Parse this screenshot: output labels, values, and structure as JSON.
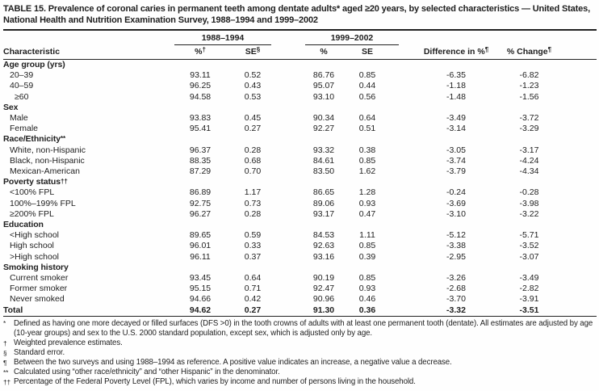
{
  "title": "TABLE 15. Prevalence of coronal caries in permanent teeth among dentate adults* aged ≥20 years, by selected characteristics — United States, National Health and Nutrition Examination Survey, 1988–1994 and 1999–2002",
  "table": {
    "group_headers": [
      {
        "label": "1988–1994"
      },
      {
        "label": "1999–2002"
      }
    ],
    "columns": [
      {
        "label": "Characteristic",
        "sup": ""
      },
      {
        "label": "%",
        "sup": "†"
      },
      {
        "label": "SE",
        "sup": "§"
      },
      {
        "label": "%",
        "sup": ""
      },
      {
        "label": "SE",
        "sup": ""
      },
      {
        "label": "Difference in %",
        "sup": "¶"
      },
      {
        "label": "% Change",
        "sup": "¶"
      }
    ],
    "rows": [
      {
        "type": "section",
        "label": "Age group (yrs)",
        "sup": ""
      },
      {
        "type": "item",
        "label": "20–39",
        "indent": 1,
        "values": [
          "93.11",
          "0.52",
          "86.76",
          "0.85",
          "-6.35",
          "-6.82"
        ]
      },
      {
        "type": "item",
        "label": "40–59",
        "indent": 1,
        "values": [
          "96.25",
          "0.43",
          "95.07",
          "0.44",
          "-1.18",
          "-1.23"
        ]
      },
      {
        "type": "item",
        "label": "≥60",
        "indent": 2,
        "values": [
          "94.58",
          "0.53",
          "93.10",
          "0.56",
          "-1.48",
          "-1.56"
        ]
      },
      {
        "type": "section",
        "label": "Sex",
        "sup": ""
      },
      {
        "type": "item",
        "label": "Male",
        "indent": 1,
        "values": [
          "93.83",
          "0.45",
          "90.34",
          "0.64",
          "-3.49",
          "-3.72"
        ]
      },
      {
        "type": "item",
        "label": "Female",
        "indent": 1,
        "values": [
          "95.41",
          "0.27",
          "92.27",
          "0.51",
          "-3.14",
          "-3.29"
        ]
      },
      {
        "type": "section",
        "label": "Race/Ethnicity",
        "sup": "**"
      },
      {
        "type": "item",
        "label": "White, non-Hispanic",
        "indent": 1,
        "values": [
          "96.37",
          "0.28",
          "93.32",
          "0.38",
          "-3.05",
          "-3.17"
        ]
      },
      {
        "type": "item",
        "label": "Black, non-Hispanic",
        "indent": 1,
        "values": [
          "88.35",
          "0.68",
          "84.61",
          "0.85",
          "-3.74",
          "-4.24"
        ]
      },
      {
        "type": "item",
        "label": "Mexican-American",
        "indent": 1,
        "values": [
          "87.29",
          "0.70",
          "83.50",
          "1.62",
          "-3.79",
          "-4.34"
        ]
      },
      {
        "type": "section",
        "label": "Poverty status",
        "sup": "††"
      },
      {
        "type": "item",
        "label": "<100% FPL",
        "indent": 1,
        "values": [
          "86.89",
          "1.17",
          "86.65",
          "1.28",
          "-0.24",
          "-0.28"
        ]
      },
      {
        "type": "item",
        "label": "100%–199% FPL",
        "indent": 1,
        "values": [
          "92.75",
          "0.73",
          "89.06",
          "0.93",
          "-3.69",
          "-3.98"
        ]
      },
      {
        "type": "item",
        "label": "≥200% FPL",
        "indent": 1,
        "values": [
          "96.27",
          "0.28",
          "93.17",
          "0.47",
          "-3.10",
          "-3.22"
        ]
      },
      {
        "type": "section",
        "label": "Education",
        "sup": ""
      },
      {
        "type": "item",
        "label": "<High school",
        "indent": 1,
        "values": [
          "89.65",
          "0.59",
          "84.53",
          "1.11",
          "-5.12",
          "-5.71"
        ]
      },
      {
        "type": "item",
        "label": "High school",
        "indent": 1,
        "values": [
          "96.01",
          "0.33",
          "92.63",
          "0.85",
          "-3.38",
          "-3.52"
        ]
      },
      {
        "type": "item",
        "label": ">High school",
        "indent": 1,
        "values": [
          "96.11",
          "0.37",
          "93.16",
          "0.39",
          "-2.95",
          "-3.07"
        ]
      },
      {
        "type": "section",
        "label": "Smoking history",
        "sup": ""
      },
      {
        "type": "item",
        "label": "Current smoker",
        "indent": 1,
        "values": [
          "93.45",
          "0.64",
          "90.19",
          "0.85",
          "-3.26",
          "-3.49"
        ]
      },
      {
        "type": "item",
        "label": "Former smoker",
        "indent": 1,
        "values": [
          "95.15",
          "0.71",
          "92.47",
          "0.93",
          "-2.68",
          "-2.82"
        ]
      },
      {
        "type": "item",
        "label": "Never smoked",
        "indent": 1,
        "values": [
          "94.66",
          "0.42",
          "90.96",
          "0.46",
          "-3.70",
          "-3.91"
        ]
      },
      {
        "type": "total",
        "label": "Total",
        "sup": "",
        "values": [
          "94.62",
          "0.27",
          "91.30",
          "0.36",
          "-3.32",
          "-3.51"
        ]
      }
    ]
  },
  "footnotes": [
    {
      "marker": "*",
      "text": "Defined as having one more decayed or filled surfaces (DFS >0) in the tooth crowns of adults with at least one permanent tooth (dentate). All estimates are adjusted by age (10-year groups) and sex to the U.S. 2000 standard population, except sex, which is adjusted only by age."
    },
    {
      "marker": "†",
      "text": "Weighted prevalence estimates."
    },
    {
      "marker": "§",
      "text": "Standard error."
    },
    {
      "marker": "¶",
      "text": "Between the two surveys and using 1988–1994 as reference. A positive value indicates an increase, a negative value a decrease."
    },
    {
      "marker": "**",
      "text": "Calculated using “other race/ethnicity” and “other Hispanic” in the denominator."
    },
    {
      "marker": "††",
      "text": "Percentage of the Federal Poverty Level (FPL), which varies by income and number of persons living in the household."
    }
  ]
}
